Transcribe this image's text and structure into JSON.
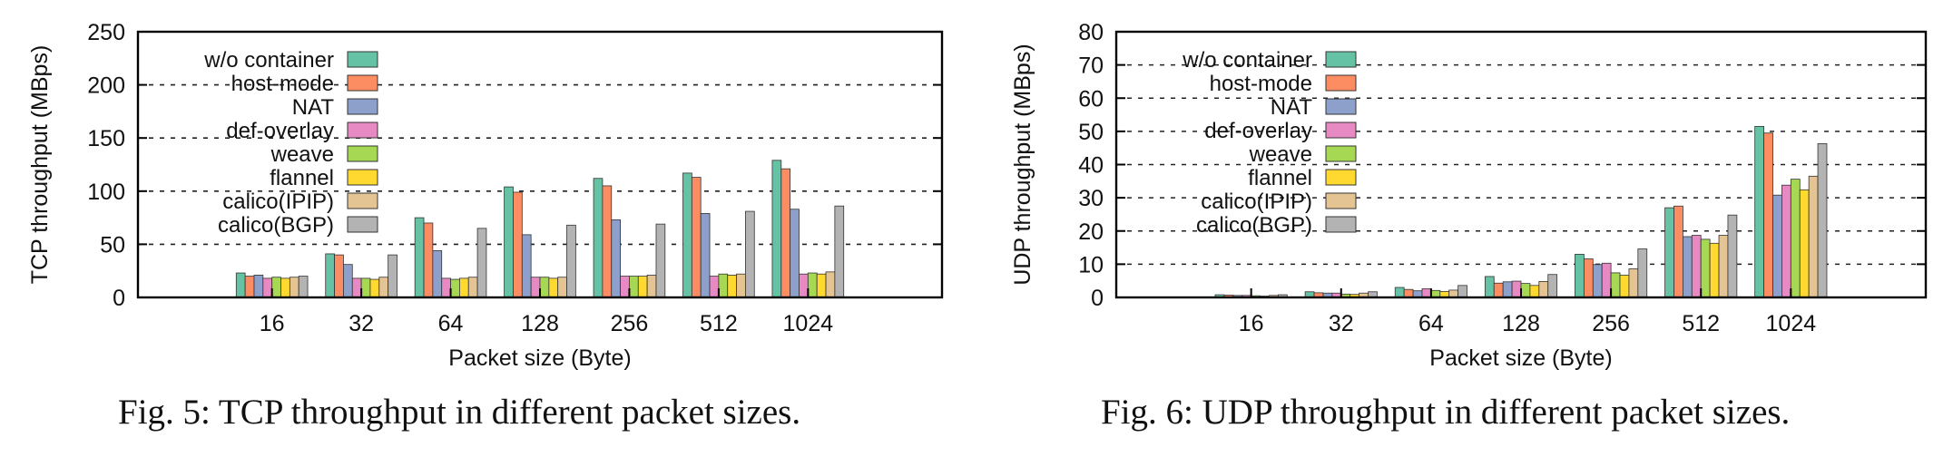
{
  "captions": {
    "fig5": "Fig. 5: TCP throughput in different packet sizes.",
    "fig6": "Fig. 6: UDP throughput in different packet sizes."
  },
  "legend": {
    "labels": [
      "w/o container",
      "host-mode",
      "NAT",
      "def-overlay",
      "weave",
      "flannel",
      "calico(IPIP)",
      "calico(BGP)"
    ],
    "colors": [
      "#66c2a5",
      "#fc8d62",
      "#8da0cb",
      "#e78ac3",
      "#a6d854",
      "#ffd92f",
      "#e5c494",
      "#b3b3b3"
    ]
  },
  "chart_data": [
    {
      "type": "bar",
      "ylabel": "TCP throughput (MBps)",
      "xlabel": "Packet size (Byte)",
      "categories": [
        "16",
        "32",
        "64",
        "128",
        "256",
        "512",
        "1024"
      ],
      "ylim": [
        0,
        250
      ],
      "yticks": [
        0,
        50,
        100,
        150,
        200,
        250
      ],
      "grid": "horizontal dashed",
      "legend_position": "top-left",
      "series": [
        {
          "name": "w/o container",
          "values": [
            23,
            41,
            75,
            104,
            112,
            117,
            129
          ]
        },
        {
          "name": "host-mode",
          "values": [
            20,
            40,
            70,
            99,
            105,
            113,
            121
          ]
        },
        {
          "name": "NAT",
          "values": [
            21,
            31,
            44,
            59,
            73,
            79,
            83
          ]
        },
        {
          "name": "def-overlay",
          "values": [
            18,
            18,
            18,
            19,
            20,
            20,
            22
          ]
        },
        {
          "name": "weave",
          "values": [
            19,
            18,
            17,
            19,
            20,
            22,
            23
          ]
        },
        {
          "name": "flannel",
          "values": [
            18,
            17,
            18,
            18,
            20,
            21,
            22
          ]
        },
        {
          "name": "calico(IPIP)",
          "values": [
            19,
            19,
            19,
            19,
            21,
            22,
            24
          ]
        },
        {
          "name": "calico(BGP)",
          "values": [
            20,
            40,
            65,
            68,
            69,
            81,
            86
          ]
        }
      ]
    },
    {
      "type": "bar",
      "ylabel": "UDP throughput (MBps)",
      "xlabel": "Packet size (Byte)",
      "categories": [
        "16",
        "32",
        "64",
        "128",
        "256",
        "512",
        "1024"
      ],
      "ylim": [
        0,
        80
      ],
      "yticks": [
        0,
        10,
        20,
        30,
        40,
        50,
        60,
        70,
        80
      ],
      "grid": "horizontal dashed",
      "legend_position": "top-left",
      "series": [
        {
          "name": "w/o container",
          "values": [
            0.8,
            1.7,
            3.0,
            6.3,
            13.0,
            27.0,
            51.5
          ]
        },
        {
          "name": "host-mode",
          "values": [
            0.7,
            1.4,
            2.4,
            4.3,
            11.6,
            27.5,
            49.5
          ]
        },
        {
          "name": "NAT",
          "values": [
            0.6,
            1.3,
            2.0,
            4.7,
            9.9,
            18.3,
            30.8
          ]
        },
        {
          "name": "def-overlay",
          "values": [
            0.6,
            1.3,
            2.6,
            4.9,
            10.3,
            18.7,
            33.8
          ]
        },
        {
          "name": "weave",
          "values": [
            0.5,
            1.0,
            2.1,
            4.2,
            7.4,
            17.5,
            35.6
          ]
        },
        {
          "name": "flannel",
          "values": [
            0.4,
            0.9,
            1.8,
            3.6,
            6.7,
            16.3,
            32.4
          ]
        },
        {
          "name": "calico(IPIP)",
          "values": [
            0.6,
            1.3,
            2.2,
            4.8,
            8.6,
            18.7,
            36.5
          ]
        },
        {
          "name": "calico(BGP)",
          "values": [
            0.8,
            1.7,
            3.6,
            6.9,
            14.6,
            24.8,
            46.3
          ]
        }
      ]
    }
  ]
}
